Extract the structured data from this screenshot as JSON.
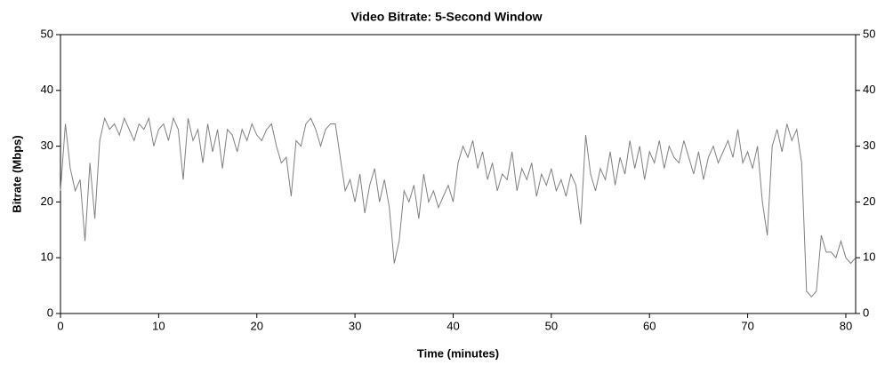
{
  "chart_data": {
    "type": "line",
    "title": "Video Bitrate: 5-Second Window",
    "x_label": "Time (minutes)",
    "y_label": "Bitrate (Mbps)",
    "xlim": [
      0,
      81
    ],
    "xticks": [
      0,
      10,
      20,
      30,
      40,
      50,
      60,
      70,
      80
    ],
    "ylim": [
      0,
      50
    ],
    "yticks": [
      0,
      10,
      20,
      30,
      40,
      50
    ],
    "y2lim": [
      0,
      50
    ],
    "y2ticks": [
      0,
      10,
      20,
      30,
      40,
      50
    ],
    "x": [
      0,
      0.5,
      1,
      1.5,
      2,
      2.5,
      3,
      3.5,
      4,
      4.5,
      5,
      5.5,
      6,
      6.5,
      7,
      7.5,
      8,
      8.5,
      9,
      9.5,
      10,
      10.5,
      11,
      11.5,
      12,
      12.5,
      13,
      13.5,
      14,
      14.5,
      15,
      15.5,
      16,
      16.5,
      17,
      17.5,
      18,
      18.5,
      19,
      19.5,
      20,
      20.5,
      21,
      21.5,
      22,
      22.5,
      23,
      23.5,
      24,
      24.5,
      25,
      25.5,
      26,
      26.5,
      27,
      27.5,
      28,
      28.5,
      29,
      29.5,
      30,
      30.5,
      31,
      31.5,
      32,
      32.5,
      33,
      33.5,
      34,
      34.5,
      35,
      35.5,
      36,
      36.5,
      37,
      37.5,
      38,
      38.5,
      39,
      39.5,
      40,
      40.5,
      41,
      41.5,
      42,
      42.5,
      43,
      43.5,
      44,
      44.5,
      45,
      45.5,
      46,
      46.5,
      47,
      47.5,
      48,
      48.5,
      49,
      49.5,
      50,
      50.5,
      51,
      51.5,
      52,
      52.5,
      53,
      53.5,
      54,
      54.5,
      55,
      55.5,
      56,
      56.5,
      57,
      57.5,
      58,
      58.5,
      59,
      59.5,
      60,
      60.5,
      61,
      61.5,
      62,
      62.5,
      63,
      63.5,
      64,
      64.5,
      65,
      65.5,
      66,
      66.5,
      67,
      67.5,
      68,
      68.5,
      69,
      69.5,
      70,
      70.5,
      71,
      71.5,
      72,
      72.5,
      73,
      73.5,
      74,
      74.5,
      75,
      75.5,
      76,
      76.5,
      77,
      77.5,
      78,
      78.5,
      79,
      79.5,
      80,
      80.5,
      81
    ],
    "series": [
      {
        "color": "#808080",
        "values": [
          22,
          34,
          26,
          22,
          24,
          13,
          27,
          17,
          31,
          35,
          33,
          34,
          32,
          35,
          33,
          31,
          34,
          33,
          35,
          30,
          33,
          34,
          31,
          35,
          33,
          24,
          35,
          31,
          33,
          27,
          34,
          29,
          33,
          26,
          33,
          32,
          29,
          33,
          31,
          34,
          32,
          31,
          33,
          34,
          30,
          27,
          28,
          21,
          31,
          30,
          34,
          35,
          33,
          30,
          33,
          34,
          34,
          28,
          22,
          24,
          20,
          25,
          18,
          23,
          26,
          20,
          24,
          19,
          9,
          13,
          22,
          20,
          23,
          17,
          25,
          20,
          22,
          19,
          21,
          23,
          20,
          27,
          30,
          28,
          31,
          26,
          29,
          24,
          27,
          22,
          25,
          24,
          29,
          22,
          26,
          24,
          27,
          21,
          25,
          23,
          26,
          22,
          24,
          21,
          25,
          23,
          16,
          32,
          25,
          22,
          26,
          24,
          29,
          23,
          28,
          25,
          31,
          26,
          30,
          24,
          29,
          27,
          31,
          26,
          30,
          28,
          27,
          31,
          28,
          25,
          29,
          24,
          28,
          30,
          27,
          29,
          31,
          28,
          33,
          27,
          29,
          26,
          30,
          20,
          14,
          30,
          33,
          29,
          34,
          31,
          33,
          27,
          4,
          3,
          4,
          14,
          11,
          11,
          10,
          13,
          10,
          9,
          10
        ]
      }
    ]
  }
}
